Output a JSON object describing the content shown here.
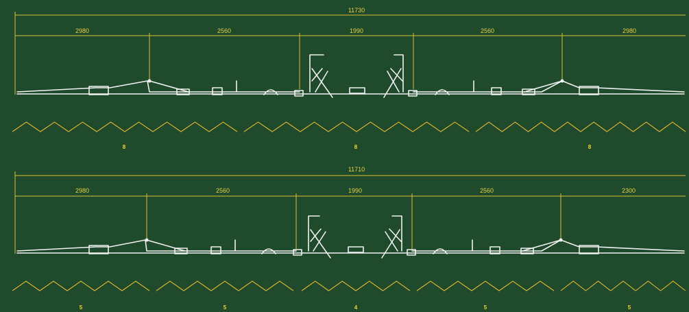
{
  "title": "",
  "colors": {
    "background": "#1f4a2b",
    "dimension": "#d9c23a",
    "boom": "#f2f2f2",
    "spray": "#e0b830"
  },
  "diagrams": [
    {
      "total": "11730",
      "segments": [
        "2980",
        "2560",
        "1990",
        "2560",
        "2980"
      ],
      "sections": [
        "8",
        "8",
        "8"
      ],
      "section_fans": [
        8,
        8,
        8
      ]
    },
    {
      "total": "11710",
      "segments": [
        "2980",
        "2560",
        "1990",
        "2560",
        "2300"
      ],
      "sections": [
        "5",
        "5",
        "4",
        "5",
        "5"
      ],
      "section_fans": [
        5,
        5,
        4,
        5,
        5
      ]
    }
  ]
}
